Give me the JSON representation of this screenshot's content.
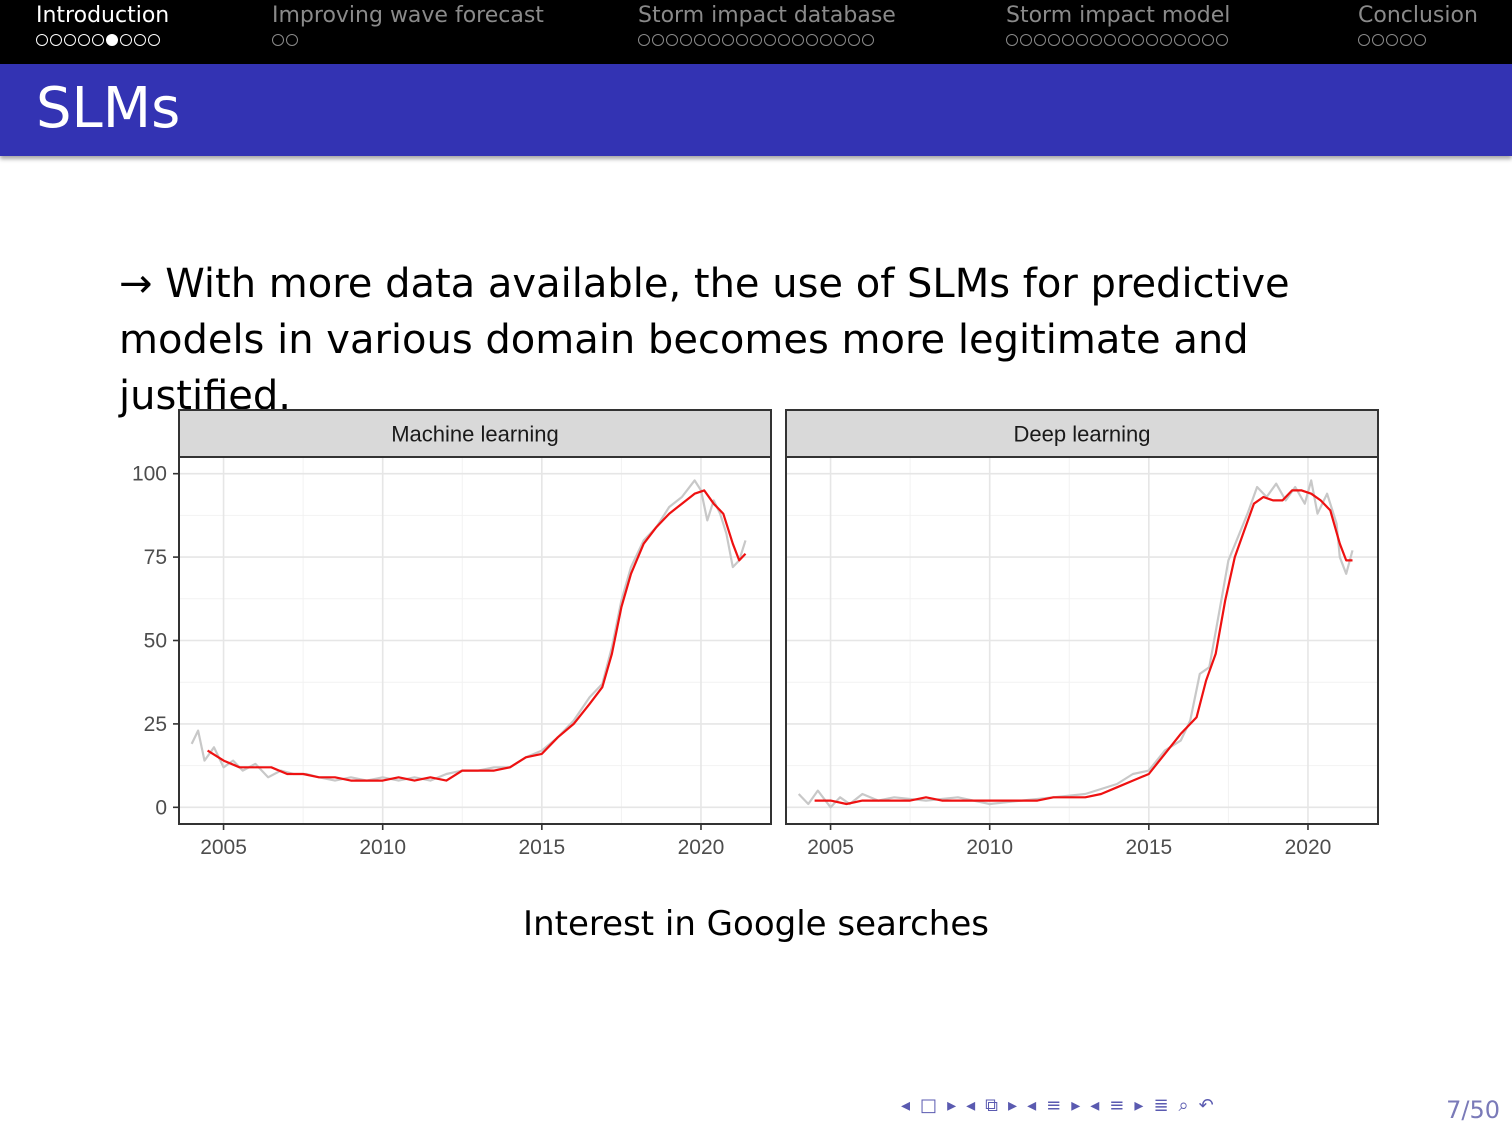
{
  "nav": {
    "sections": [
      {
        "label": "Introduction",
        "dots": 9,
        "filled_index": 5,
        "active": true
      },
      {
        "label": "Improving wave forecast",
        "dots": 2,
        "filled_index": -1,
        "active": false
      },
      {
        "label": "Storm impact database",
        "dots": 17,
        "filled_index": -1,
        "active": false
      },
      {
        "label": "Storm impact model",
        "dots": 16,
        "filled_index": -1,
        "active": false
      },
      {
        "label": "Conclusion",
        "dots": 5,
        "filled_index": -1,
        "active": false
      }
    ]
  },
  "frame": {
    "title": "SLMs",
    "title_bar_color": "#3333b3"
  },
  "body": {
    "line1": "→ With more data available, the use of SLMs for predictive",
    "line2": "models in various domain becomes more legitimate and justified."
  },
  "caption": "Interest in Google searches",
  "footer": {
    "icons": [
      "nav-prev-frame-icon",
      "nav-frame-icon",
      "nav-next-frame-icon",
      "nav-prev-subsection-icon",
      "nav-subsection-icon",
      "nav-next-subsection-icon",
      "nav-prev-section-icon",
      "nav-section-icon",
      "nav-next-section-icon",
      "nav-prev-part-icon",
      "nav-part-icon",
      "nav-next-part-icon",
      "nav-align-icon",
      "nav-search-icon",
      "nav-undo-icon"
    ],
    "page": "7/50"
  },
  "chart_data": [
    {
      "type": "line",
      "title": "Machine learning",
      "xlabel": "",
      "ylabel": "",
      "xlim": [
        2003.6,
        2022.2
      ],
      "ylim": [
        -5,
        105
      ],
      "xticks": [
        "2005",
        "2010",
        "2015",
        "2020"
      ],
      "yticks": [
        "0",
        "25",
        "50",
        "75",
        "100"
      ],
      "grid": true,
      "colors": {
        "raw": "#c8c8c8",
        "smooth": "#ee1111"
      },
      "series": [
        {
          "name": "",
          "x": [
            2004.0,
            2004.2,
            2004.4,
            2004.7,
            2005.0,
            2005.3,
            2005.6,
            2006.0,
            2006.4,
            2006.8,
            2007.2,
            2007.6,
            2008.0,
            2008.5,
            2009.0,
            2009.5,
            2010.0,
            2010.5,
            2011.0,
            2011.5,
            2012.0,
            2012.5,
            2013.0,
            2013.5,
            2014.0,
            2014.5,
            2015.0,
            2015.5,
            2016.0,
            2016.5,
            2016.9,
            2017.2,
            2017.5,
            2017.8,
            2018.2,
            2018.6,
            2019.0,
            2019.4,
            2019.8,
            2020.0,
            2020.2,
            2020.4,
            2020.6,
            2020.8,
            2021.0,
            2021.2,
            2021.4
          ],
          "y": [
            19,
            23,
            14,
            18,
            12,
            14,
            11,
            13,
            9,
            11,
            10,
            10,
            9,
            8,
            9,
            8,
            9,
            8,
            9,
            8,
            10,
            11,
            11,
            12,
            12,
            15,
            17,
            21,
            26,
            33,
            37,
            48,
            62,
            72,
            80,
            84,
            90,
            93,
            98,
            95,
            86,
            92,
            88,
            82,
            72,
            74,
            80
          ]
        },
        {
          "name": "",
          "x": [
            2004.5,
            2005.0,
            2005.5,
            2006.0,
            2006.5,
            2007.0,
            2007.5,
            2008.0,
            2008.5,
            2009.0,
            2009.5,
            2010.0,
            2010.5,
            2011.0,
            2011.5,
            2012.0,
            2012.5,
            2013.0,
            2013.5,
            2014.0,
            2014.5,
            2015.0,
            2015.5,
            2016.0,
            2016.5,
            2016.9,
            2017.2,
            2017.5,
            2017.8,
            2018.2,
            2018.6,
            2019.0,
            2019.4,
            2019.8,
            2020.1,
            2020.4,
            2020.7,
            2021.0,
            2021.2,
            2021.4
          ],
          "y": [
            17,
            14,
            12,
            12,
            12,
            10,
            10,
            9,
            9,
            8,
            8,
            8,
            9,
            8,
            9,
            8,
            11,
            11,
            11,
            12,
            15,
            16,
            21,
            25,
            31,
            36,
            46,
            60,
            70,
            79,
            84,
            88,
            91,
            94,
            95,
            91,
            88,
            79,
            74,
            76
          ]
        }
      ]
    },
    {
      "type": "line",
      "title": "Deep learning",
      "xlabel": "",
      "ylabel": "",
      "xlim": [
        2003.6,
        2022.2
      ],
      "ylim": [
        -5,
        105
      ],
      "xticks": [
        "2005",
        "2010",
        "2015",
        "2020"
      ],
      "yticks": [
        "0",
        "25",
        "50",
        "75",
        "100"
      ],
      "grid": true,
      "colors": {
        "raw": "#c8c8c8",
        "smooth": "#ee1111"
      },
      "series": [
        {
          "name": "",
          "x": [
            2004.0,
            2004.3,
            2004.6,
            2005.0,
            2005.3,
            2005.6,
            2006.0,
            2006.5,
            2007.0,
            2008.0,
            2009.0,
            2010.0,
            2011.0,
            2012.0,
            2013.0,
            2014.0,
            2014.5,
            2015.0,
            2015.5,
            2016.0,
            2016.3,
            2016.6,
            2016.9,
            2017.2,
            2017.5,
            2017.8,
            2018.1,
            2018.4,
            2018.7,
            2019.0,
            2019.3,
            2019.6,
            2019.9,
            2020.1,
            2020.3,
            2020.6,
            2020.9,
            2021.0,
            2021.2,
            2021.4
          ],
          "y": [
            4,
            1,
            5,
            0,
            3,
            1,
            4,
            2,
            3,
            2,
            3,
            1,
            2,
            3,
            4,
            7,
            10,
            11,
            17,
            20,
            26,
            40,
            42,
            58,
            74,
            81,
            88,
            96,
            93,
            97,
            92,
            96,
            91,
            98,
            88,
            94,
            85,
            75,
            70,
            77
          ]
        },
        {
          "name": "",
          "x": [
            2004.5,
            2005.0,
            2005.5,
            2006.0,
            2006.5,
            2007.0,
            2007.5,
            2008.0,
            2008.5,
            2009.0,
            2009.5,
            2010.0,
            2010.5,
            2011.0,
            2011.5,
            2012.0,
            2012.5,
            2013.0,
            2013.5,
            2014.0,
            2014.5,
            2015.0,
            2015.5,
            2016.0,
            2016.5,
            2016.8,
            2017.1,
            2017.4,
            2017.7,
            2018.0,
            2018.3,
            2018.6,
            2018.9,
            2019.2,
            2019.5,
            2019.8,
            2020.1,
            2020.4,
            2020.7,
            2021.0,
            2021.2,
            2021.4
          ],
          "y": [
            2,
            2,
            1,
            2,
            2,
            2,
            2,
            3,
            2,
            2,
            2,
            2,
            2,
            2,
            2,
            3,
            3,
            3,
            4,
            6,
            8,
            10,
            16,
            22,
            27,
            38,
            46,
            62,
            75,
            83,
            91,
            93,
            92,
            92,
            95,
            95,
            94,
            92,
            89,
            79,
            74,
            74
          ]
        }
      ]
    }
  ]
}
